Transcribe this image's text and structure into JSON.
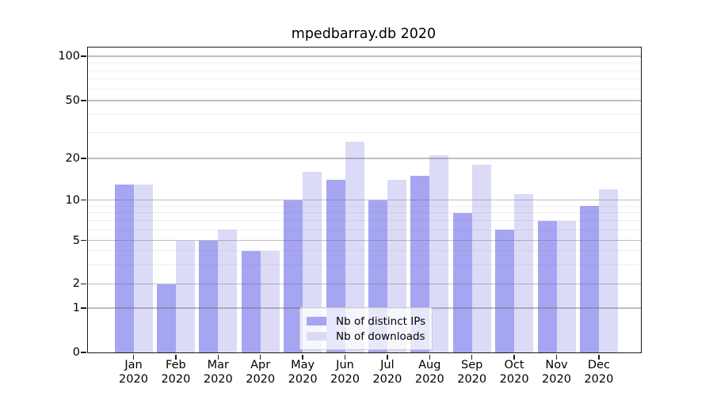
{
  "chart_data": {
    "type": "bar",
    "title": "mpedbarray.db 2020",
    "categories": [
      "Jan",
      "Feb",
      "Mar",
      "Apr",
      "May",
      "Jun",
      "Jul",
      "Aug",
      "Sep",
      "Oct",
      "Nov",
      "Dec"
    ],
    "x_year_label": "2020",
    "series": [
      {
        "name": "Nb of distinct IPs",
        "color": "#a5a5f2",
        "values": [
          13,
          2,
          5,
          4,
          10,
          14,
          10,
          15,
          8,
          6,
          7,
          9
        ]
      },
      {
        "name": "Nb of downloads",
        "color": "#dbdbf8",
        "values": [
          13,
          5,
          6,
          4,
          16,
          26,
          14,
          21,
          18,
          11,
          7,
          12
        ]
      }
    ],
    "y_ticks": [
      0,
      1,
      2,
      5,
      10,
      20,
      50,
      100
    ],
    "y_minor_ticks": [
      3,
      4,
      6,
      7,
      8,
      9,
      30,
      40,
      60,
      70,
      80,
      90
    ],
    "scale": "symlog",
    "ylim": [
      0,
      114
    ],
    "grid": true,
    "legend_position": "lower-center-inside"
  }
}
